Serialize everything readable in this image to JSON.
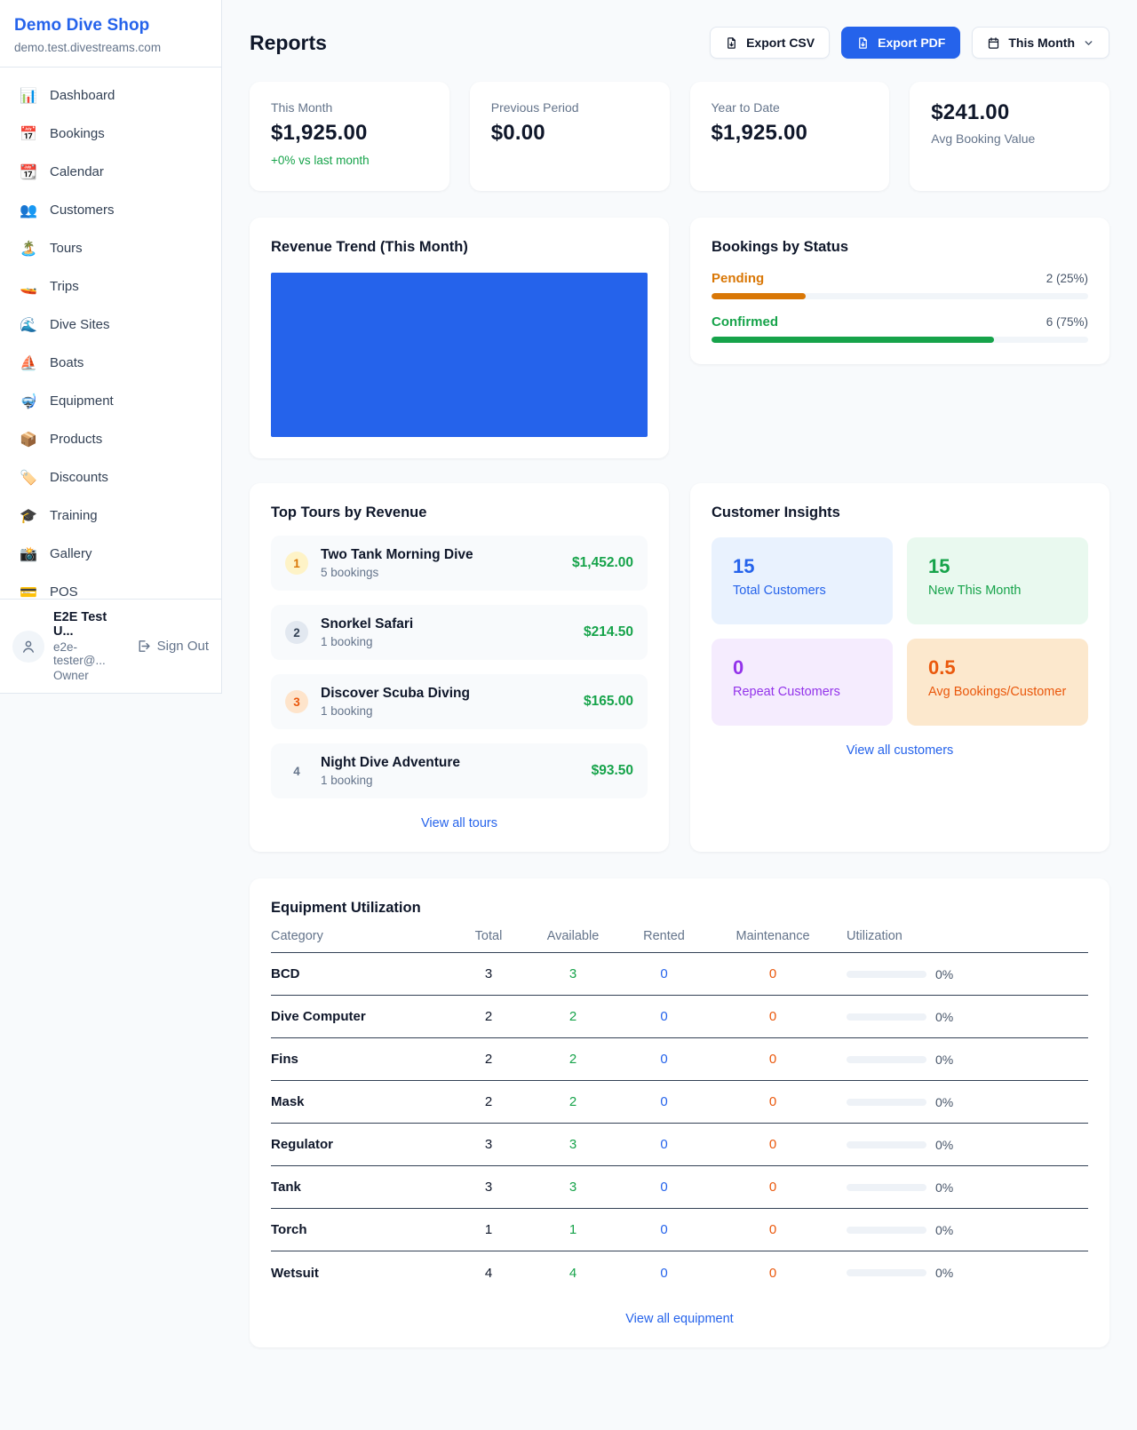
{
  "colors": {
    "accent_blue": "#2563eb",
    "green": "#16a34a",
    "pending_orange": "#d97706",
    "maintenance_orange": "#ea580c",
    "purple": "#9333ea",
    "page_bg": "#f8fafc"
  },
  "sidebar": {
    "shop_name": "Demo Dive Shop",
    "shop_domain": "demo.test.divestreams.com",
    "items": [
      {
        "icon_name": "bar-chart-icon",
        "icon": "📊",
        "label": "Dashboard"
      },
      {
        "icon_name": "calendar-date-icon",
        "icon": "📅",
        "label": "Bookings"
      },
      {
        "icon_name": "tear-off-calendar-icon",
        "icon": "📆",
        "label": "Calendar"
      },
      {
        "icon_name": "people-icon",
        "icon": "👥",
        "label": "Customers"
      },
      {
        "icon_name": "island-icon",
        "icon": "🏝️",
        "label": "Tours"
      },
      {
        "icon_name": "speedboat-icon",
        "icon": "🚤",
        "label": "Trips"
      },
      {
        "icon_name": "wave-icon",
        "icon": "🌊",
        "label": "Dive Sites"
      },
      {
        "icon_name": "sailboat-icon",
        "icon": "⛵",
        "label": "Boats"
      },
      {
        "icon_name": "diving-mask-icon",
        "icon": "🤿",
        "label": "Equipment"
      },
      {
        "icon_name": "package-icon",
        "icon": "📦",
        "label": "Products"
      },
      {
        "icon_name": "label-tag-icon",
        "icon": "🏷️",
        "label": "Discounts"
      },
      {
        "icon_name": "graduation-cap-icon",
        "icon": "🎓",
        "label": "Training"
      },
      {
        "icon_name": "camera-icon",
        "icon": "📸",
        "label": "Gallery"
      },
      {
        "icon_name": "credit-card-icon",
        "icon": "💳",
        "label": "POS"
      }
    ],
    "user": {
      "name": "E2E Test U...",
      "email": "e2e-tester@...",
      "role": "Owner",
      "sign_out_label": "Sign Out"
    }
  },
  "header": {
    "title": "Reports",
    "export_csv_label": "Export CSV",
    "export_pdf_label": "Export PDF",
    "period_label": "This Month"
  },
  "stats": [
    {
      "label": "This Month",
      "value": "$1,925.00",
      "delta": "+0% vs last month",
      "value_first": false
    },
    {
      "label": "Previous Period",
      "value": "$0.00",
      "delta": "",
      "value_first": false
    },
    {
      "label": "Year to Date",
      "value": "$1,925.00",
      "delta": "",
      "value_first": false
    },
    {
      "label": "Avg Booking Value",
      "value": "$241.00",
      "delta": "",
      "value_first": true
    }
  ],
  "revenue_trend": {
    "title": "Revenue Trend (This Month)",
    "bar_color": "#2563eb"
  },
  "chart_data": [
    {
      "type": "bar",
      "title": "Revenue Trend (This Month)",
      "categories": [
        "This Month"
      ],
      "values": [
        1925.0
      ],
      "ylim": [
        0,
        1925
      ],
      "legend": false,
      "note": "single solid blue bar filling the entire plot area, no axes or gridlines",
      "color": "#2563eb"
    },
    {
      "type": "bar",
      "title": "Bookings by Status",
      "categories": [
        "Pending",
        "Confirmed"
      ],
      "values": [
        2,
        6
      ],
      "value_labels": [
        "2 (25%)",
        "6 (75%)"
      ],
      "percentages": [
        25,
        75
      ],
      "colors": [
        "#d97706",
        "#16a34a"
      ],
      "note": "horizontal progress bars on light gray tracks"
    }
  ],
  "bookings_by_status": {
    "title": "Bookings by Status",
    "rows": [
      {
        "label": "Pending",
        "value": "2 (25%)",
        "pct": 25,
        "color": "#d97706"
      },
      {
        "label": "Confirmed",
        "value": "6 (75%)",
        "pct": 75,
        "color": "#16a34a"
      }
    ]
  },
  "top_tours": {
    "title": "Top Tours by Revenue",
    "items": [
      {
        "rank": "1",
        "name": "Two Tank Morning Dive",
        "bookings": "5 bookings",
        "revenue": "$1,452.00",
        "badge_bg": "#fef3c7",
        "badge_fg": "#d97706"
      },
      {
        "rank": "2",
        "name": "Snorkel Safari",
        "bookings": "1 booking",
        "revenue": "$214.50",
        "badge_bg": "#e2e8f0",
        "badge_fg": "#334155"
      },
      {
        "rank": "3",
        "name": "Discover Scuba Diving",
        "bookings": "1 booking",
        "revenue": "$165.00",
        "badge_bg": "#fee4cb",
        "badge_fg": "#ea580c"
      },
      {
        "rank": "4",
        "name": "Night Dive Adventure",
        "bookings": "1 booking",
        "revenue": "$93.50",
        "badge_bg": "transparent",
        "badge_fg": "#64748b"
      }
    ],
    "view_all_label": "View all tours"
  },
  "customer_insights": {
    "title": "Customer Insights",
    "tiles": [
      {
        "value": "15",
        "label": "Total Customers",
        "bg": "#e9f2fe",
        "fg": "#2563eb"
      },
      {
        "value": "15",
        "label": "New This Month",
        "bg": "#e9f9ef",
        "fg": "#16a34a"
      },
      {
        "value": "0",
        "label": "Repeat Customers",
        "bg": "#f5ecfe",
        "fg": "#9333ea"
      },
      {
        "value": "0.5",
        "label": "Avg Bookings/Customer",
        "bg": "#fce8cd",
        "fg": "#ea580c"
      }
    ],
    "view_all_label": "View all customers"
  },
  "equipment": {
    "title": "Equipment Utilization",
    "columns": [
      "Category",
      "Total",
      "Available",
      "Rented",
      "Maintenance",
      "Utilization"
    ],
    "rows": [
      {
        "category": "BCD",
        "total": "3",
        "available": "3",
        "rented": "0",
        "maintenance": "0",
        "utilization": "0%",
        "utilization_pct": 0
      },
      {
        "category": "Dive Computer",
        "total": "2",
        "available": "2",
        "rented": "0",
        "maintenance": "0",
        "utilization": "0%",
        "utilization_pct": 0
      },
      {
        "category": "Fins",
        "total": "2",
        "available": "2",
        "rented": "0",
        "maintenance": "0",
        "utilization": "0%",
        "utilization_pct": 0
      },
      {
        "category": "Mask",
        "total": "2",
        "available": "2",
        "rented": "0",
        "maintenance": "0",
        "utilization": "0%",
        "utilization_pct": 0
      },
      {
        "category": "Regulator",
        "total": "3",
        "available": "3",
        "rented": "0",
        "maintenance": "0",
        "utilization": "0%",
        "utilization_pct": 0
      },
      {
        "category": "Tank",
        "total": "3",
        "available": "3",
        "rented": "0",
        "maintenance": "0",
        "utilization": "0%",
        "utilization_pct": 0
      },
      {
        "category": "Torch",
        "total": "1",
        "available": "1",
        "rented": "0",
        "maintenance": "0",
        "utilization": "0%",
        "utilization_pct": 0
      },
      {
        "category": "Wetsuit",
        "total": "4",
        "available": "4",
        "rented": "0",
        "maintenance": "0",
        "utilization": "0%",
        "utilization_pct": 0
      }
    ],
    "view_all_label": "View all equipment"
  }
}
